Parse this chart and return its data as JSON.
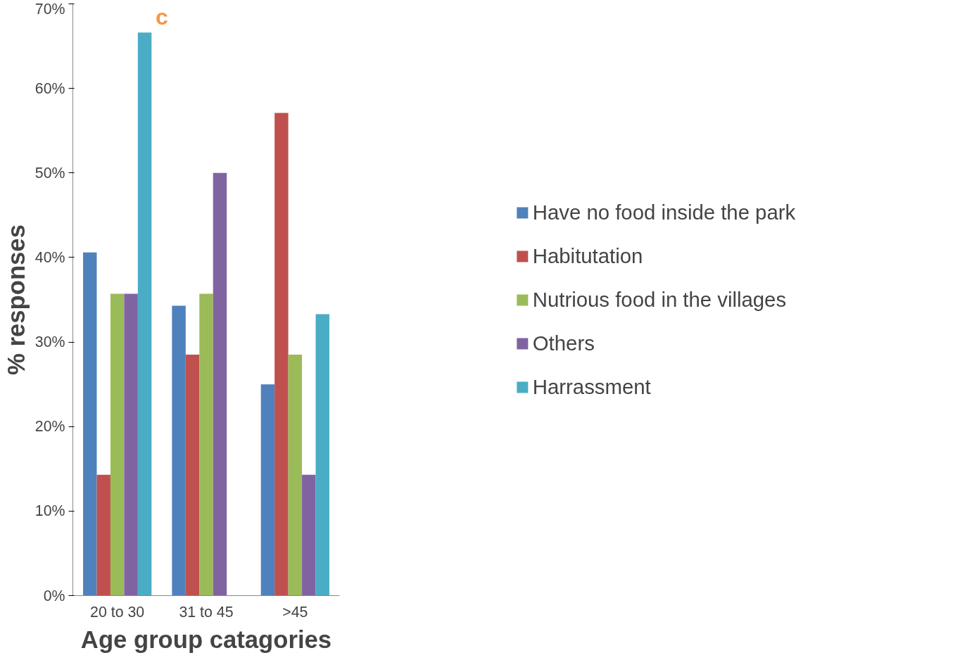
{
  "chart_data": {
    "type": "bar",
    "xlabel": "Age group catagories",
    "ylabel": "% responses",
    "annotations": [
      "c"
    ],
    "categories": [
      "20 to 30",
      "31 to 45",
      ">45"
    ],
    "series": [
      {
        "name": "Have no food inside the park",
        "color": "#4f81bd",
        "values": [
          40.6,
          34.3,
          25.0
        ]
      },
      {
        "name": "Habitutation",
        "color": "#c0504d",
        "values": [
          14.3,
          28.5,
          57.1
        ]
      },
      {
        "name": "Nutrious food in the villages",
        "color": "#9bbb59",
        "values": [
          35.7,
          35.7,
          28.5
        ]
      },
      {
        "name": "Others",
        "color": "#8064a2",
        "values": [
          35.7,
          50.0,
          14.3
        ]
      },
      {
        "name": "Harrassment",
        "color": "#4bacc6",
        "values": [
          66.6,
          null,
          33.3
        ]
      }
    ],
    "ylim": [
      0,
      70
    ],
    "yticks": [
      {
        "value": 0,
        "label": "0%"
      },
      {
        "value": 10,
        "label": "10%"
      },
      {
        "value": 20,
        "label": "20%"
      },
      {
        "value": 30,
        "label": "30%"
      },
      {
        "value": 40,
        "label": "40%"
      },
      {
        "value": 50,
        "label": "50%"
      },
      {
        "value": 60,
        "label": "60%"
      },
      {
        "value": 70,
        "label": "70%"
      }
    ],
    "grid": false,
    "legend": "right"
  }
}
